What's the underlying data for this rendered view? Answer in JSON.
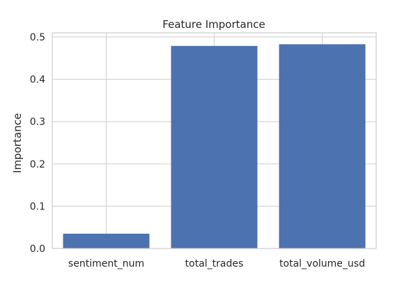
{
  "chart_data": {
    "type": "bar",
    "title": "Feature Importance",
    "xlabel": "",
    "ylabel": "Importance",
    "categories": [
      "sentiment_num",
      "total_trades",
      "total_volume_usd"
    ],
    "values": [
      0.035,
      0.479,
      0.483
    ],
    "ylim": [
      0,
      0.51
    ],
    "yticks": [
      0.0,
      0.1,
      0.2,
      0.3,
      0.4,
      0.5
    ],
    "ytick_labels": [
      "0.0",
      "0.1",
      "0.2",
      "0.3",
      "0.4",
      "0.5"
    ],
    "grid": true,
    "bar_color": "#4c72b0",
    "grid_color": "#cccccc",
    "frame_color": "#cccccc"
  }
}
